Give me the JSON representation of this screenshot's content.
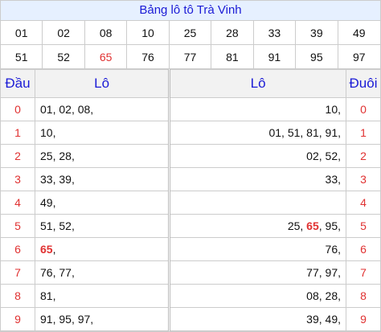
{
  "title": "Bảng lô tô Trà Vinh",
  "numbers": [
    {
      "v": "01",
      "hl": false
    },
    {
      "v": "02",
      "hl": false
    },
    {
      "v": "08",
      "hl": false
    },
    {
      "v": "10",
      "hl": false
    },
    {
      "v": "25",
      "hl": false
    },
    {
      "v": "28",
      "hl": false
    },
    {
      "v": "33",
      "hl": false
    },
    {
      "v": "39",
      "hl": false
    },
    {
      "v": "49",
      "hl": false
    },
    {
      "v": "51",
      "hl": false
    },
    {
      "v": "52",
      "hl": false
    },
    {
      "v": "65",
      "hl": true
    },
    {
      "v": "76",
      "hl": false
    },
    {
      "v": "77",
      "hl": false
    },
    {
      "v": "81",
      "hl": false
    },
    {
      "v": "91",
      "hl": false
    },
    {
      "v": "95",
      "hl": false
    },
    {
      "v": "97",
      "hl": false
    }
  ],
  "headers": {
    "dau": "Đầu",
    "lo_left": "Lô",
    "lo_right": "Lô",
    "duoi": "Đuôi"
  },
  "highlight": "65",
  "highlight_color": "#e03131",
  "rows": [
    {
      "digit": "0",
      "left": [
        "01",
        "02",
        "08"
      ],
      "right": [
        "10"
      ]
    },
    {
      "digit": "1",
      "left": [
        "10"
      ],
      "right": [
        "01",
        "51",
        "81",
        "91"
      ]
    },
    {
      "digit": "2",
      "left": [
        "25",
        "28"
      ],
      "right": [
        "02",
        "52"
      ]
    },
    {
      "digit": "3",
      "left": [
        "33",
        "39"
      ],
      "right": [
        "33"
      ]
    },
    {
      "digit": "4",
      "left": [
        "49"
      ],
      "right": []
    },
    {
      "digit": "5",
      "left": [
        "51",
        "52"
      ],
      "right": [
        "25",
        "65",
        "95"
      ]
    },
    {
      "digit": "6",
      "left": [
        "65"
      ],
      "right": [
        "76"
      ]
    },
    {
      "digit": "7",
      "left": [
        "76",
        "77"
      ],
      "right": [
        "77",
        "97"
      ]
    },
    {
      "digit": "8",
      "left": [
        "81"
      ],
      "right": [
        "08",
        "28"
      ]
    },
    {
      "digit": "9",
      "left": [
        "91",
        "95",
        "97"
      ],
      "right": [
        "39",
        "49"
      ]
    }
  ]
}
